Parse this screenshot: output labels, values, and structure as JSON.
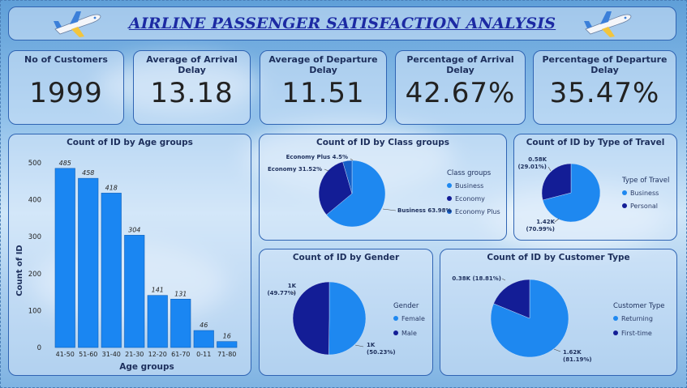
{
  "header": {
    "title": "AIRLINE PASSENGER SATISFACTION ANALYSIS"
  },
  "kpis": [
    {
      "label": "No of Customers",
      "value": "1999"
    },
    {
      "label": "Average of Arrival Delay",
      "value": "13.18"
    },
    {
      "label": "Average of Departure Delay",
      "value": "11.51"
    },
    {
      "label": "Percentage of Arrival Delay",
      "value": "42.67%"
    },
    {
      "label": "Percentage of Departure Delay",
      "value": "35.47%"
    }
  ],
  "colors": {
    "light": "#1e88f0",
    "dark": "#131d96",
    "mid": "#1560c8",
    "bar": "#1a86f2"
  },
  "chart_data": [
    {
      "type": "bar",
      "title": "Count of ID by Age groups",
      "xlabel": "Age groups",
      "ylabel": "Count of ID",
      "categories": [
        "41-50",
        "51-60",
        "31-40",
        "21-30",
        "12-20",
        "61-70",
        "0-11",
        "71-80"
      ],
      "values": [
        485,
        458,
        418,
        304,
        141,
        131,
        46,
        16
      ],
      "yticks": [
        "0",
        "100",
        "200",
        "300",
        "400",
        "500"
      ],
      "ylim": [
        0,
        500
      ]
    },
    {
      "type": "pie",
      "title": "Count of ID by Class groups",
      "legend_title": "Class groups",
      "slices": [
        {
          "name": "Business",
          "value": 63.98,
          "label": "Business 63.98%",
          "color": "#1e88f0"
        },
        {
          "name": "Economy",
          "value": 31.52,
          "label": "Economy 31.52%",
          "color": "#131d96"
        },
        {
          "name": "Economy Plus",
          "value": 4.5,
          "label": "Economy Plus 4.5%",
          "color": "#1560c8"
        }
      ]
    },
    {
      "type": "pie",
      "title": "Count of ID by Type of Travel",
      "legend_title": "Type of Travel",
      "slices": [
        {
          "name": "Business",
          "value": 70.99,
          "label_a": "1.42K",
          "label_b": "(70.99%)",
          "color": "#1e88f0"
        },
        {
          "name": "Personal",
          "value": 29.01,
          "label_a": "0.58K",
          "label_b": "(29.01%)",
          "color": "#131d96"
        }
      ]
    },
    {
      "type": "pie",
      "title": "Count of ID by Gender",
      "legend_title": "Gender",
      "slices": [
        {
          "name": "Female",
          "value": 50.23,
          "label_a": "1K",
          "label_b": "(50.23%)",
          "color": "#1e88f0"
        },
        {
          "name": "Male",
          "value": 49.77,
          "label_a": "1K",
          "label_b": "(49.77%)",
          "color": "#131d96"
        }
      ]
    },
    {
      "type": "pie",
      "title": "Count of ID by Customer Type",
      "legend_title": "Customer Type",
      "slices": [
        {
          "name": "Returning",
          "value": 81.19,
          "label_a": "1.62K",
          "label_b": "(81.19%)",
          "color": "#1e88f0"
        },
        {
          "name": "First-time",
          "value": 18.81,
          "label_a": "0.38K (18.81%)",
          "label_b": "",
          "color": "#131d96"
        }
      ]
    }
  ]
}
